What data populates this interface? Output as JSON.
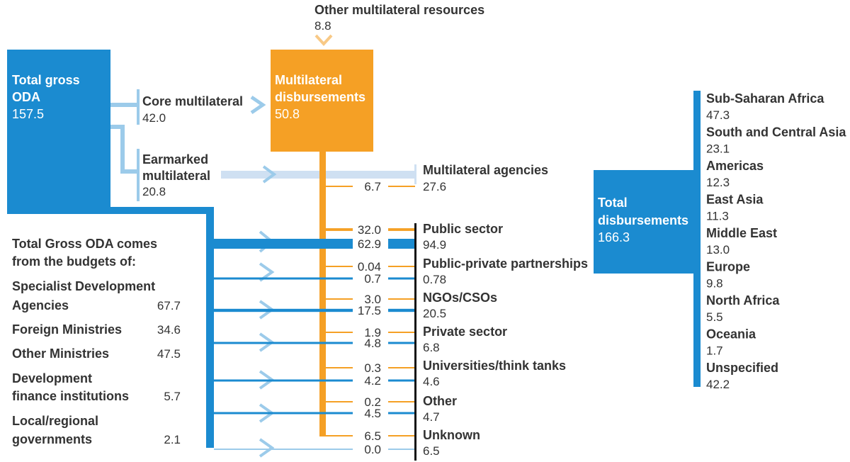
{
  "colors": {
    "blue": "#1b8bd0",
    "light_blue": "#9ccbea",
    "pale_blue": "#cfe0f2",
    "orange": "#f5a025",
    "dark": "#333333"
  },
  "top_resource": {
    "label": "Other multilateral resources",
    "value": "8.8"
  },
  "total_gross_oda": {
    "line1": "Total gross",
    "line2": "ODA",
    "value": "157.5"
  },
  "core_multilateral": {
    "label": "Core multilateral",
    "value": "42.0"
  },
  "earmarked_multilateral": {
    "line1": "Earmarked",
    "line2": "multilateral",
    "value": "20.8"
  },
  "multilateral_disbursements": {
    "line1": "Multilateral",
    "line2": "disbursements",
    "value": "50.8"
  },
  "budgets": {
    "heading_line1": "Total Gross ODA comes",
    "heading_line2": "from the budgets of:",
    "items": [
      {
        "line1": "Specialist Development",
        "line2": "Agencies",
        "value": "67.7"
      },
      {
        "line1": "Foreign Ministries",
        "line2": "",
        "value": "34.6"
      },
      {
        "line1": "Other Ministries",
        "line2": "",
        "value": "47.5"
      },
      {
        "line1": "Development",
        "line2": "finance institutions",
        "value": "5.7"
      },
      {
        "line1": "Local/regional",
        "line2": "governments",
        "value": "2.1"
      }
    ]
  },
  "channels": [
    {
      "label": "Multilateral agencies",
      "multilateral": "6.7",
      "bilateral": "",
      "total": "27.6",
      "ml_weight": 6.7,
      "bi_weight": 20.8
    },
    {
      "label": "Public sector",
      "multilateral": "32.0",
      "bilateral": "62.9",
      "total": "94.9",
      "ml_weight": 32.0,
      "bi_weight": 62.9
    },
    {
      "label": "Public-private partnerships",
      "multilateral": "0.04",
      "bilateral": "0.7",
      "total": "0.78",
      "ml_weight": 0.04,
      "bi_weight": 0.7
    },
    {
      "label": "NGOs/CSOs",
      "multilateral": "3.0",
      "bilateral": "17.5",
      "total": "20.5",
      "ml_weight": 3.0,
      "bi_weight": 17.5
    },
    {
      "label": "Private sector",
      "multilateral": "1.9",
      "bilateral": "4.8",
      "total": "6.8",
      "ml_weight": 1.9,
      "bi_weight": 4.8
    },
    {
      "label": "Universities/think tanks",
      "multilateral": "0.3",
      "bilateral": "4.2",
      "total": "4.6",
      "ml_weight": 0.3,
      "bi_weight": 4.2
    },
    {
      "label": "Other",
      "multilateral": "0.2",
      "bilateral": "4.5",
      "total": "4.7",
      "ml_weight": 0.2,
      "bi_weight": 4.5
    },
    {
      "label": "Unknown",
      "multilateral": "6.5",
      "bilateral": "0.0",
      "total": "6.5",
      "ml_weight": 6.5,
      "bi_weight": 0.0
    }
  ],
  "total_disbursements": {
    "line1": "Total",
    "line2": "disbursements",
    "value": "166.3"
  },
  "regions": [
    {
      "label": "Sub-Saharan Africa",
      "value": "47.3"
    },
    {
      "label": "South and Central Asia",
      "value": "23.1"
    },
    {
      "label": "Americas",
      "value": "12.3"
    },
    {
      "label": "East Asia",
      "value": "11.3"
    },
    {
      "label": "Middle East",
      "value": "13.0"
    },
    {
      "label": "Europe",
      "value": "9.8"
    },
    {
      "label": "North Africa",
      "value": "5.5"
    },
    {
      "label": "Oceania",
      "value": "1.7"
    },
    {
      "label": "Unspecified",
      "value": "42.2"
    }
  ]
}
